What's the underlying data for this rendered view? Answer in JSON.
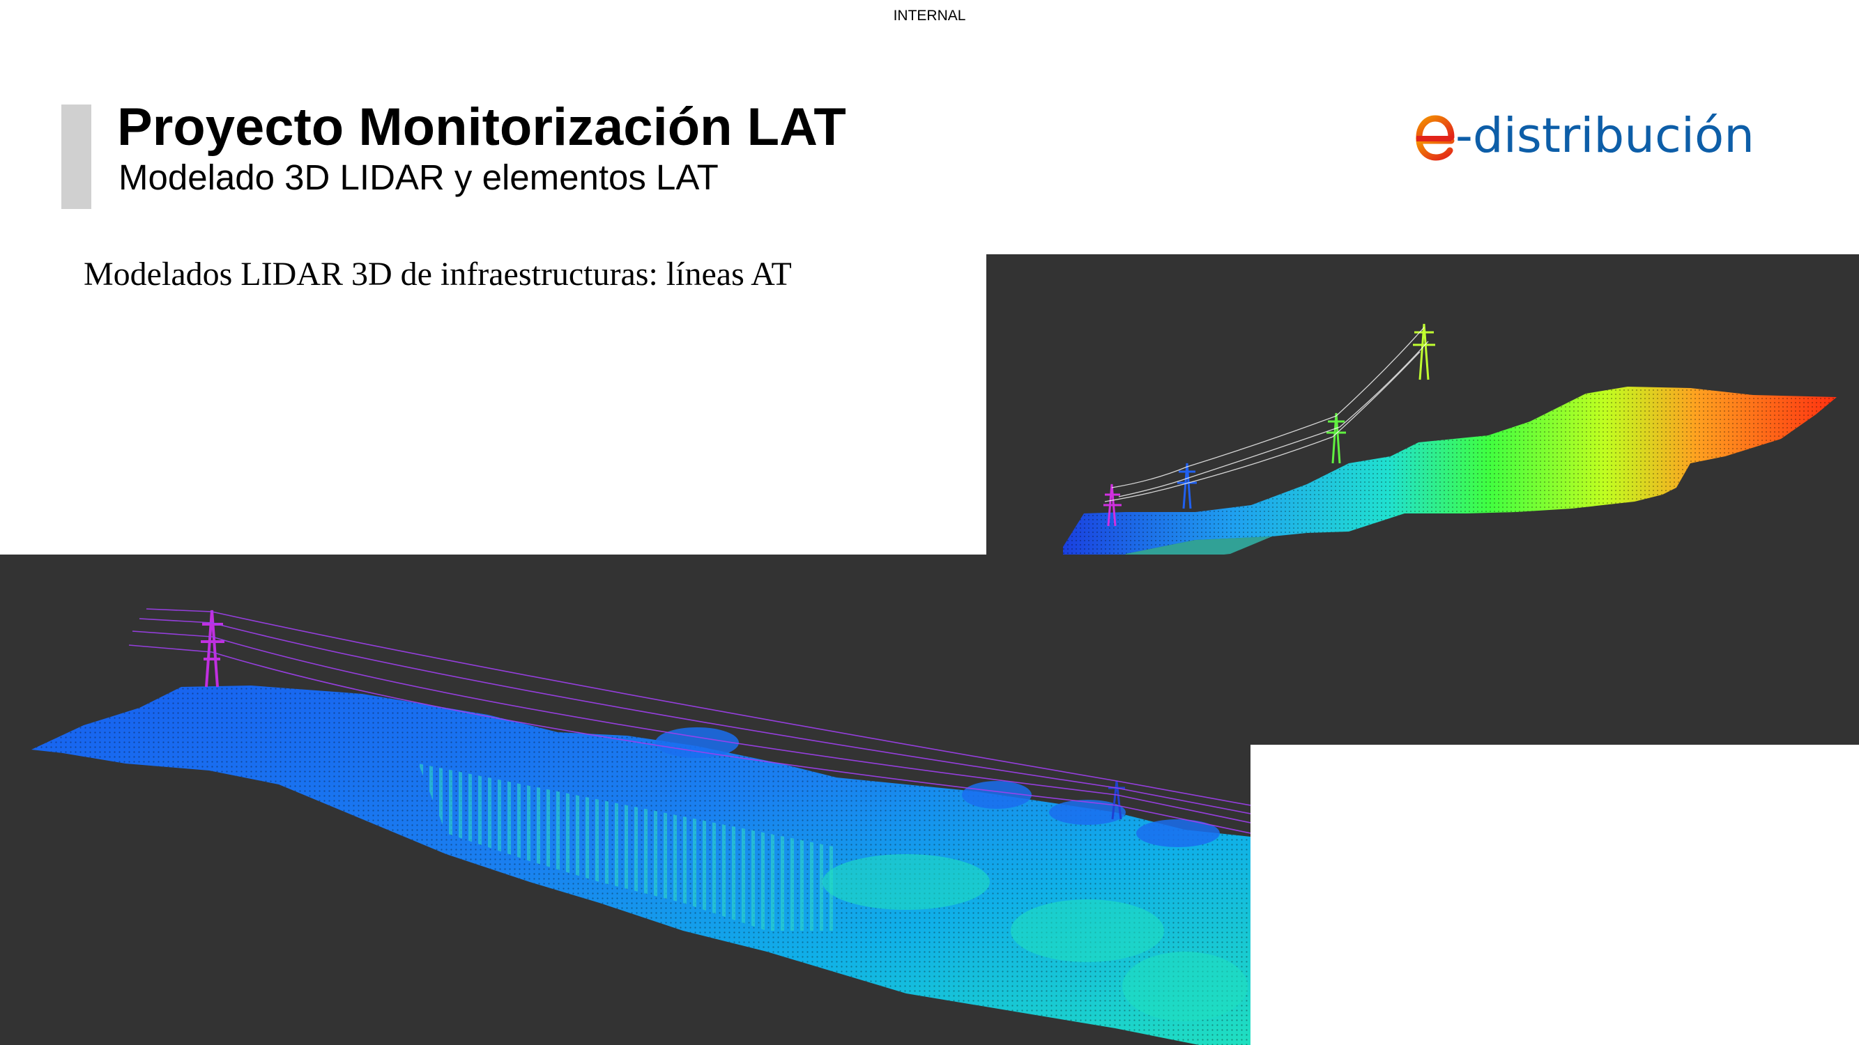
{
  "header": {
    "classification": "INTERNAL",
    "title": "Proyecto Monitorización LAT",
    "subtitle": "Modelado 3D LIDAR y elementos LAT"
  },
  "logo": {
    "text": "-distribución",
    "letter": "e",
    "brand_blue": "#0d5ea8",
    "brand_red": "#e2231a"
  },
  "content": {
    "heading": "Modelados LIDAR 3D de infraestructuras: líneas AT"
  },
  "images": [
    {
      "name": "lidar-point-cloud-overview",
      "colormap": "elevation-rainbow"
    },
    {
      "name": "lidar-point-cloud-detail",
      "colormap": "elevation-rainbow"
    }
  ]
}
